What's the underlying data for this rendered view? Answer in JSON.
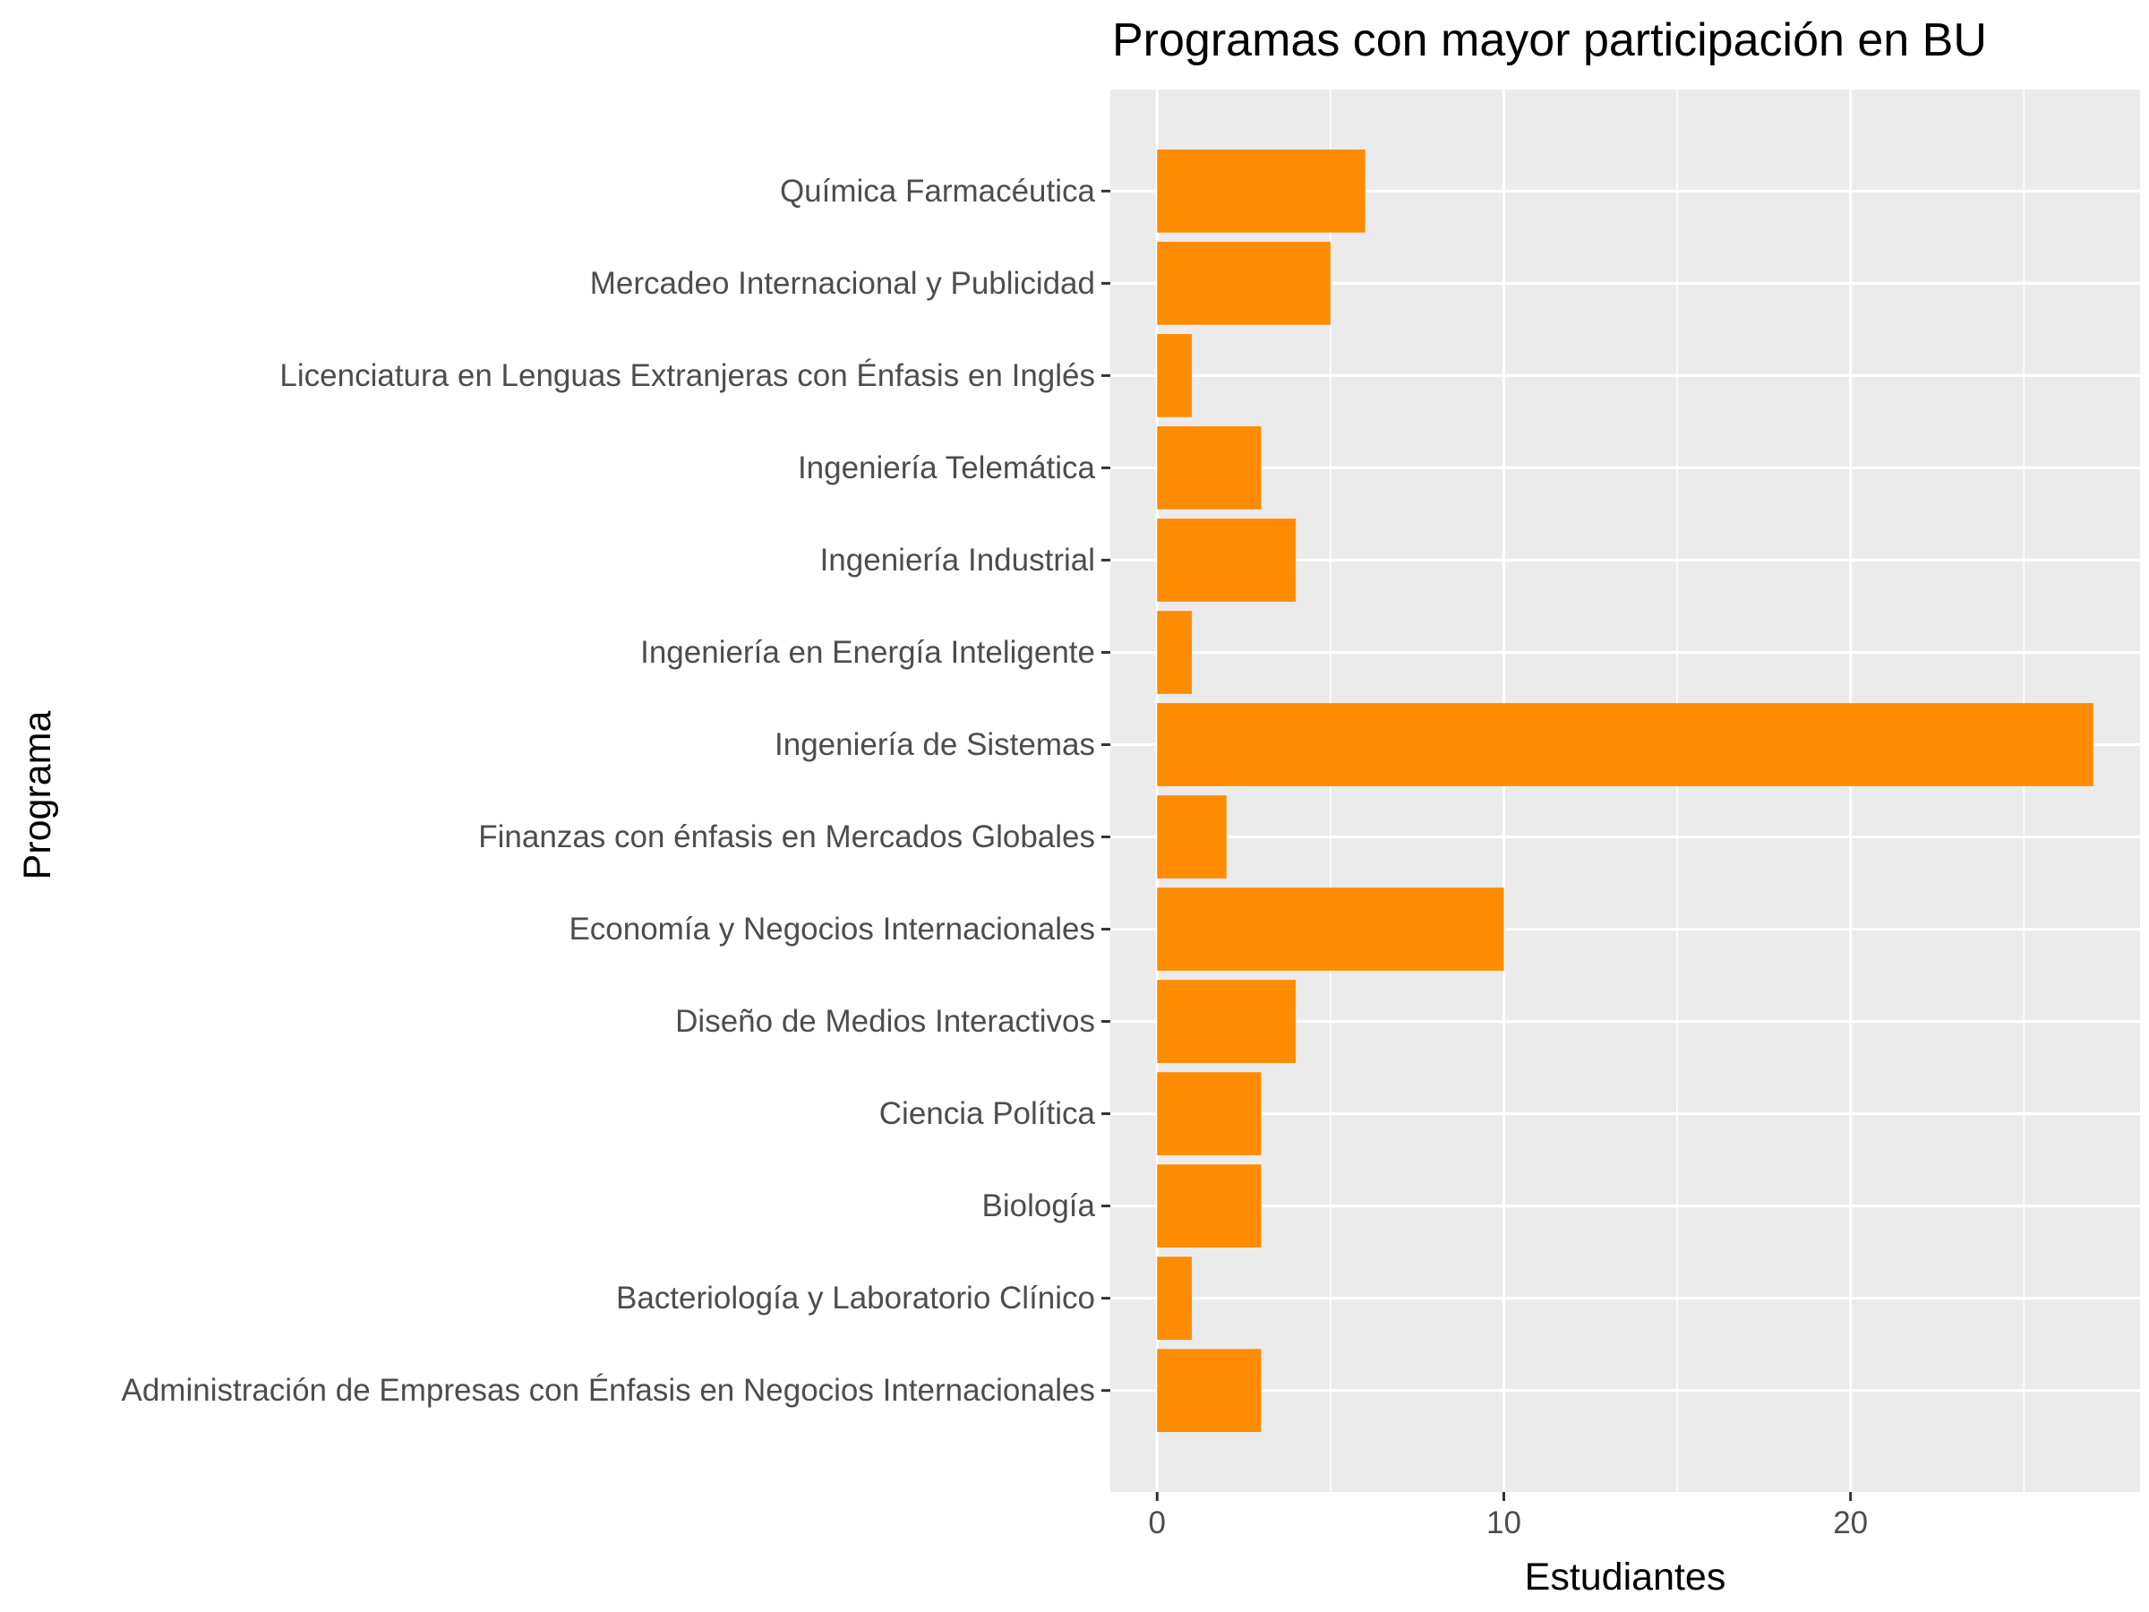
{
  "chart_data": {
    "type": "bar",
    "orientation": "horizontal",
    "title": "Programas con mayor participación en BU",
    "xlabel": "Estudiantes",
    "ylabel": "Programa",
    "categories": [
      "Administración de Empresas con Énfasis en Negocios Internacionales",
      "Bacteriología y Laboratorio Clínico",
      "Biología",
      "Ciencia Política",
      "Diseño de Medios Interactivos",
      "Economía y Negocios Internacionales",
      "Finanzas con énfasis en Mercados Globales",
      "Ingeniería de Sistemas",
      "Ingeniería en Energía Inteligente",
      "Ingeniería Industrial",
      "Ingeniería Telemática",
      "Licenciatura en Lenguas Extranjeras con Énfasis en Inglés",
      "Mercadeo Internacional y Publicidad",
      "Química Farmacéutica"
    ],
    "values": [
      3,
      1,
      3,
      3,
      4,
      10,
      2,
      27,
      1,
      4,
      3,
      1,
      5,
      6
    ],
    "xlim": [
      -1.35,
      28.35
    ],
    "x_ticks": [
      0,
      10,
      20
    ],
    "x_tick_labels": [
      "0",
      "10",
      "20"
    ],
    "grid": true,
    "legend": "none",
    "bar_color": "#FF8C00",
    "panel_background": "#EBEBEB",
    "grid_color": "#FFFFFF"
  }
}
